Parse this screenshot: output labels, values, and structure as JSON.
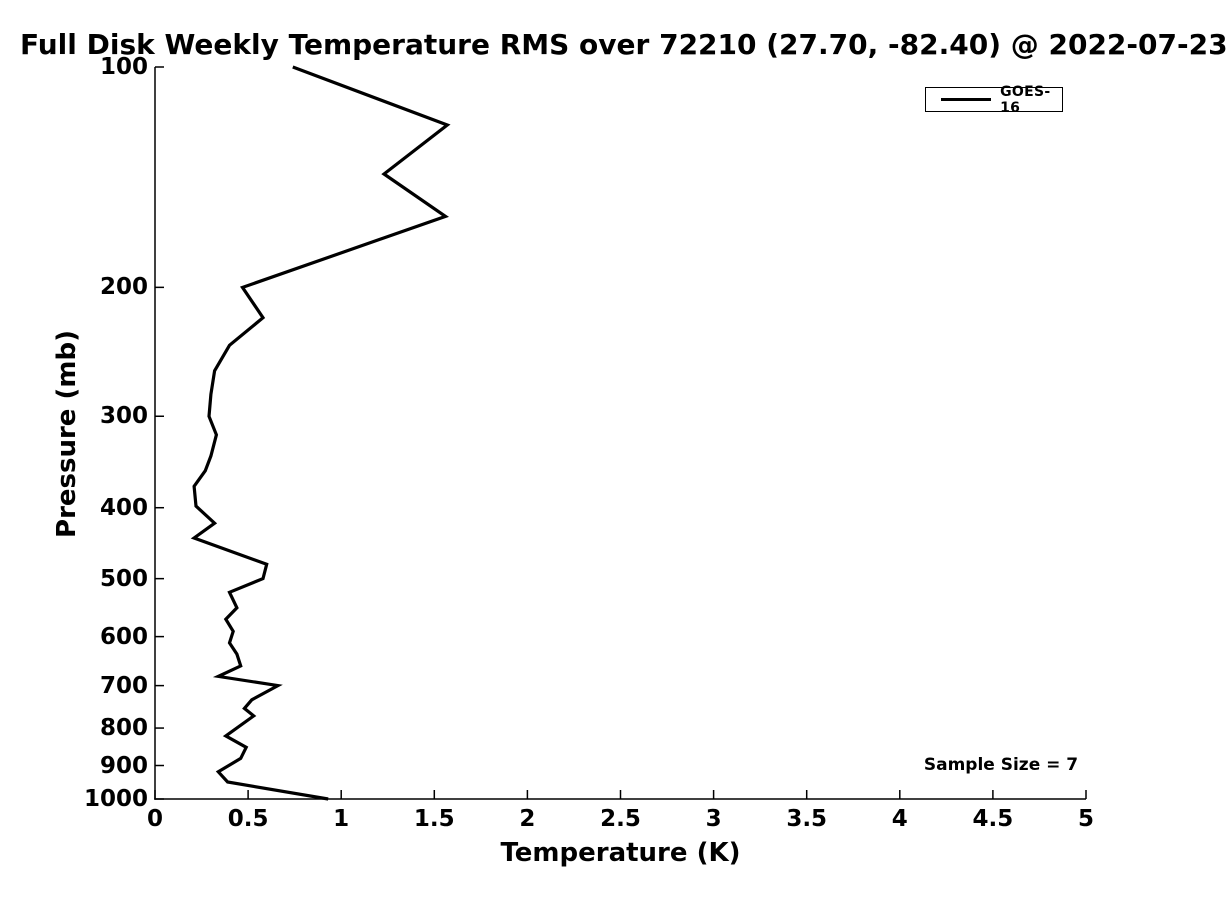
{
  "chart": {
    "title": "Full Disk Weekly Temperature RMS over 72210 (27.70, -82.40) @ 2022-07-23",
    "xlabel": "Temperature (K)",
    "ylabel": "Pressure (mb)",
    "annotation": "Sample Size = 7",
    "legend": {
      "label": "GOES-16"
    }
  },
  "chart_data": {
    "type": "line",
    "title": "Full Disk Weekly Temperature RMS over 72210 (27.70, -82.40) @ 2022-07-23",
    "station_id": "72210",
    "station_lat": 27.7,
    "station_lon": -82.4,
    "date": "2022-07-23",
    "sample_size": 7,
    "annotation": "Sample Size = 7",
    "xlabel": "Temperature (K)",
    "ylabel": "Pressure (mb)",
    "grid": false,
    "legend_position": "top-right",
    "line_color": "#000000",
    "line_width": 3.2,
    "x_axis": {
      "min": 0,
      "max": 5,
      "scale": "linear",
      "ticks": [
        0,
        0.5,
        1,
        1.5,
        2,
        2.5,
        3,
        3.5,
        4,
        4.5,
        5
      ],
      "tick_labels": [
        "0",
        "0.5",
        "1",
        "1.5",
        "2",
        "2.5",
        "3",
        "3.5",
        "4",
        "4.5",
        "5"
      ]
    },
    "y_axis": {
      "min": 100,
      "max": 1000,
      "scale": "log",
      "inverted": true,
      "ticks": [
        100,
        200,
        300,
        400,
        500,
        600,
        700,
        800,
        900,
        1000
      ],
      "tick_labels": [
        "100",
        "200",
        "300",
        "400",
        "500",
        "600",
        "700",
        "800",
        "900",
        "1000"
      ]
    },
    "series": [
      {
        "name": "GOES-16",
        "color": "#000000",
        "points_format": [
          "temperature_rms_k",
          "pressure_mb"
        ],
        "points": [
          [
            0.74,
            100
          ],
          [
            1.57,
            120
          ],
          [
            1.23,
            140
          ],
          [
            1.56,
            160
          ],
          [
            0.47,
            200
          ],
          [
            0.58,
            220
          ],
          [
            0.4,
            240
          ],
          [
            0.32,
            260
          ],
          [
            0.3,
            280
          ],
          [
            0.29,
            300
          ],
          [
            0.33,
            318
          ],
          [
            0.3,
            340
          ],
          [
            0.27,
            356
          ],
          [
            0.21,
            374
          ],
          [
            0.22,
            398
          ],
          [
            0.32,
            420
          ],
          [
            0.21,
            440
          ],
          [
            0.6,
            478
          ],
          [
            0.58,
            500
          ],
          [
            0.4,
            522
          ],
          [
            0.44,
            548
          ],
          [
            0.38,
            568
          ],
          [
            0.42,
            590
          ],
          [
            0.4,
            612
          ],
          [
            0.44,
            634
          ],
          [
            0.46,
            658
          ],
          [
            0.34,
            680
          ],
          [
            0.66,
            700
          ],
          [
            0.52,
            732
          ],
          [
            0.48,
            752
          ],
          [
            0.53,
            770
          ],
          [
            0.38,
            820
          ],
          [
            0.49,
            850
          ],
          [
            0.46,
            880
          ],
          [
            0.34,
            918
          ],
          [
            0.39,
            948
          ],
          [
            0.93,
            1000
          ]
        ]
      }
    ]
  }
}
